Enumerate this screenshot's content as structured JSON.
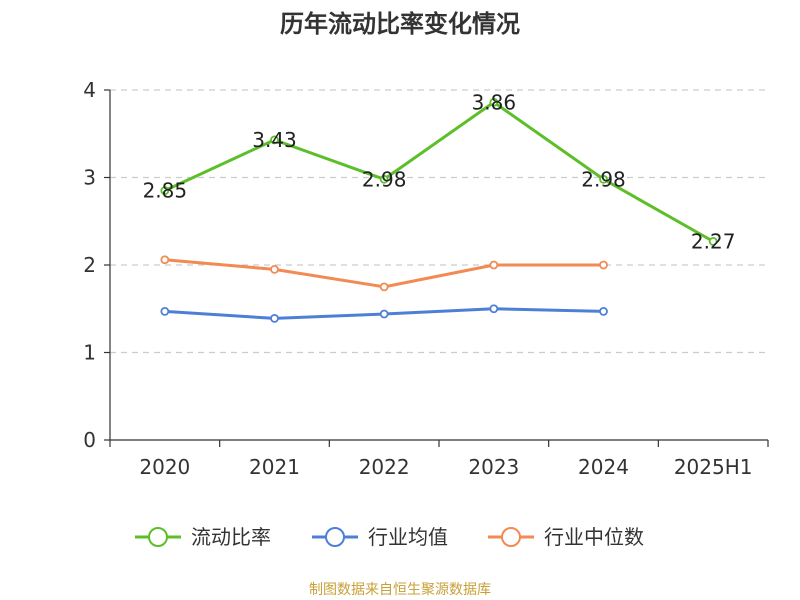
{
  "chart_data": {
    "type": "line",
    "title": "历年流动比率变化情况",
    "categories": [
      "2020",
      "2021",
      "2022",
      "2023",
      "2024",
      "2025H1"
    ],
    "ylim": [
      0,
      4
    ],
    "yticks": [
      "0",
      "1",
      "2",
      "3",
      "4"
    ],
    "grid": "horizontal-dashed",
    "legend_position": "bottom",
    "series": [
      {
        "name": "流动比率",
        "color": "#5cbf2a",
        "values": [
          2.85,
          3.43,
          2.98,
          3.86,
          2.98,
          2.27
        ],
        "labels": [
          "2.85",
          "3.43",
          "2.98",
          "3.86",
          "2.98",
          "2.27"
        ]
      },
      {
        "name": "行业均值",
        "color": "#4e7fd6",
        "values": [
          1.47,
          1.39,
          1.44,
          1.5,
          1.47,
          null
        ]
      },
      {
        "name": "行业中位数",
        "color": "#f28a53",
        "values": [
          2.06,
          1.95,
          1.75,
          2.0,
          2.0,
          null
        ]
      }
    ]
  },
  "footer": {
    "source": "制图数据来自恒生聚源数据库"
  }
}
